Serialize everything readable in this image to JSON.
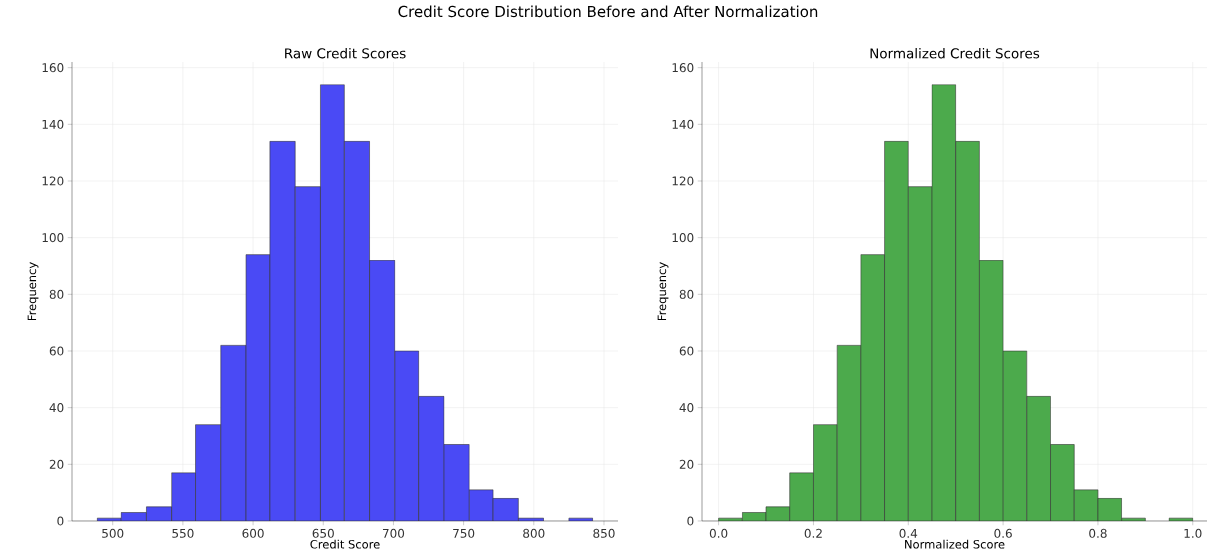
{
  "chart_data": [
    {
      "type": "histogram",
      "title": "Raw Credit Scores",
      "xlabel": "Credit Score",
      "ylabel": "Frequency",
      "annotations": [
        "Credit Score Distribution Before and After Normalization"
      ],
      "bins": [
        489,
        506,
        524,
        542,
        559,
        577,
        595,
        612,
        630,
        648,
        665,
        683,
        701,
        718,
        736,
        754,
        771,
        789,
        807,
        825,
        842
      ],
      "values": [
        1,
        3,
        5,
        17,
        34,
        62,
        94,
        134,
        118,
        154,
        134,
        92,
        60,
        44,
        27,
        11,
        8,
        1,
        0,
        1
      ],
      "color": "#4a4af5",
      "xlim": [
        471,
        860
      ],
      "ylim": [
        0,
        162
      ],
      "xticks": [
        500,
        550,
        600,
        650,
        700,
        750,
        800,
        850
      ],
      "yticks": [
        0,
        20,
        40,
        60,
        80,
        100,
        120,
        140,
        160
      ],
      "grid": true
    },
    {
      "type": "histogram",
      "title": "Normalized Credit Scores",
      "xlabel": "Normalized Score",
      "ylabel": "Frequency",
      "bins": [
        0,
        0.05,
        0.1,
        0.15,
        0.2,
        0.25,
        0.3,
        0.35,
        0.4,
        0.45,
        0.5,
        0.55,
        0.6,
        0.65,
        0.7,
        0.75,
        0.8,
        0.85,
        0.9,
        0.95,
        1.0
      ],
      "values": [
        1,
        3,
        5,
        17,
        34,
        62,
        94,
        134,
        118,
        154,
        134,
        92,
        60,
        44,
        27,
        11,
        8,
        1,
        0,
        1
      ],
      "color": "#4caa4c",
      "xlim": [
        -0.035,
        1.03
      ],
      "ylim": [
        0,
        162
      ],
      "xticks": [
        {
          "value": 0,
          "label": "0.0"
        },
        0.2,
        0.4,
        0.6,
        0.8,
        {
          "value": 1,
          "label": "1.0"
        }
      ],
      "yticks": [
        0,
        20,
        40,
        60,
        80,
        100,
        120,
        140,
        160
      ],
      "grid": true
    }
  ]
}
